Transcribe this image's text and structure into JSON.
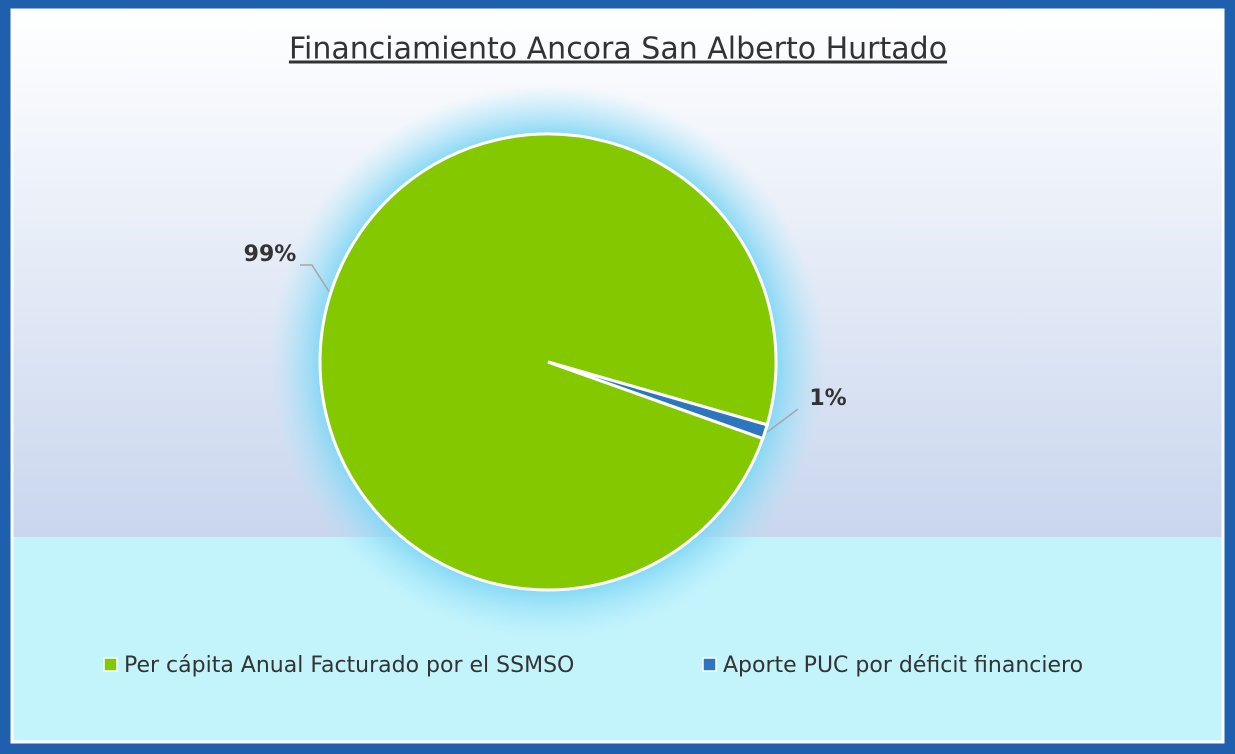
{
  "chart_data": {
    "type": "pie",
    "title": "Financiamiento Ancora San Alberto Hurtado",
    "categories": [
      "Per cápita Anual Facturado por el SSMSO",
      "Aporte PUC por déficit financiero"
    ],
    "values": [
      99,
      1
    ],
    "value_labels": [
      "99%",
      "1%"
    ],
    "colors": [
      "#84c800",
      "#2e75c0"
    ],
    "legend": "bottom"
  }
}
